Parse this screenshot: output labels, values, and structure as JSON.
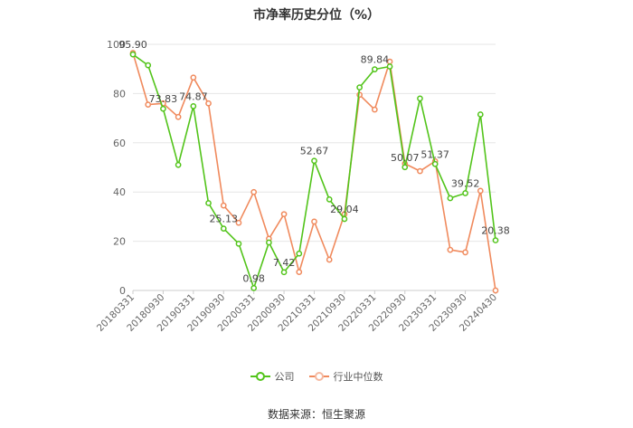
{
  "chart_data": {
    "type": "line",
    "title": "市净率历史分位（%）",
    "source": "数据来源：恒生聚源",
    "ylim": [
      0,
      100
    ],
    "yticks": [
      0,
      20,
      40,
      60,
      80,
      100
    ],
    "x_tick_labels": [
      "20180331",
      "20180930",
      "20190331",
      "20190930",
      "20200331",
      "20200930",
      "20210331",
      "20210930",
      "20220331",
      "20220930",
      "20230331",
      "20230930",
      "20240430"
    ],
    "x": [
      "20180331",
      "20180630",
      "20180930",
      "20181231",
      "20190331",
      "20190630",
      "20190930",
      "20191231",
      "20200331",
      "20200630",
      "20200930",
      "20201231",
      "20210331",
      "20210630",
      "20210930",
      "20211231",
      "20220331",
      "20220630",
      "20220930",
      "20221231",
      "20230331",
      "20230630",
      "20230930",
      "20231231",
      "20240430"
    ],
    "grid": true,
    "legend_position": "bottom",
    "series": [
      {
        "name": "公司",
        "color": "#52c41a",
        "values": [
          95.9,
          91.5,
          73.83,
          51.0,
          74.87,
          35.5,
          25.13,
          19.0,
          0.98,
          19.5,
          7.42,
          15.0,
          52.67,
          37.0,
          29.04,
          82.5,
          89.84,
          91.0,
          50.07,
          78.0,
          51.37,
          37.5,
          39.52,
          71.5,
          20.38
        ],
        "labels": {
          "0": "95.90",
          "2": "73.83",
          "4": "74.87",
          "6": "25.13",
          "8": "0.98",
          "10": "7.42",
          "12": "52.67",
          "14": "29.04",
          "16": "89.84",
          "18": "50.07",
          "20": "51.37",
          "22": "39.52",
          "24": "20.38"
        }
      },
      {
        "name": "行业中位数",
        "color": "#f08a5d",
        "values": [
          96.5,
          75.5,
          76.0,
          70.5,
          86.5,
          76.0,
          34.5,
          27.5,
          40.0,
          21.0,
          31.0,
          7.5,
          28.0,
          12.5,
          31.0,
          79.5,
          73.5,
          93.0,
          51.5,
          48.5,
          52.5,
          16.5,
          15.5,
          40.5,
          0.0
        ]
      }
    ]
  }
}
